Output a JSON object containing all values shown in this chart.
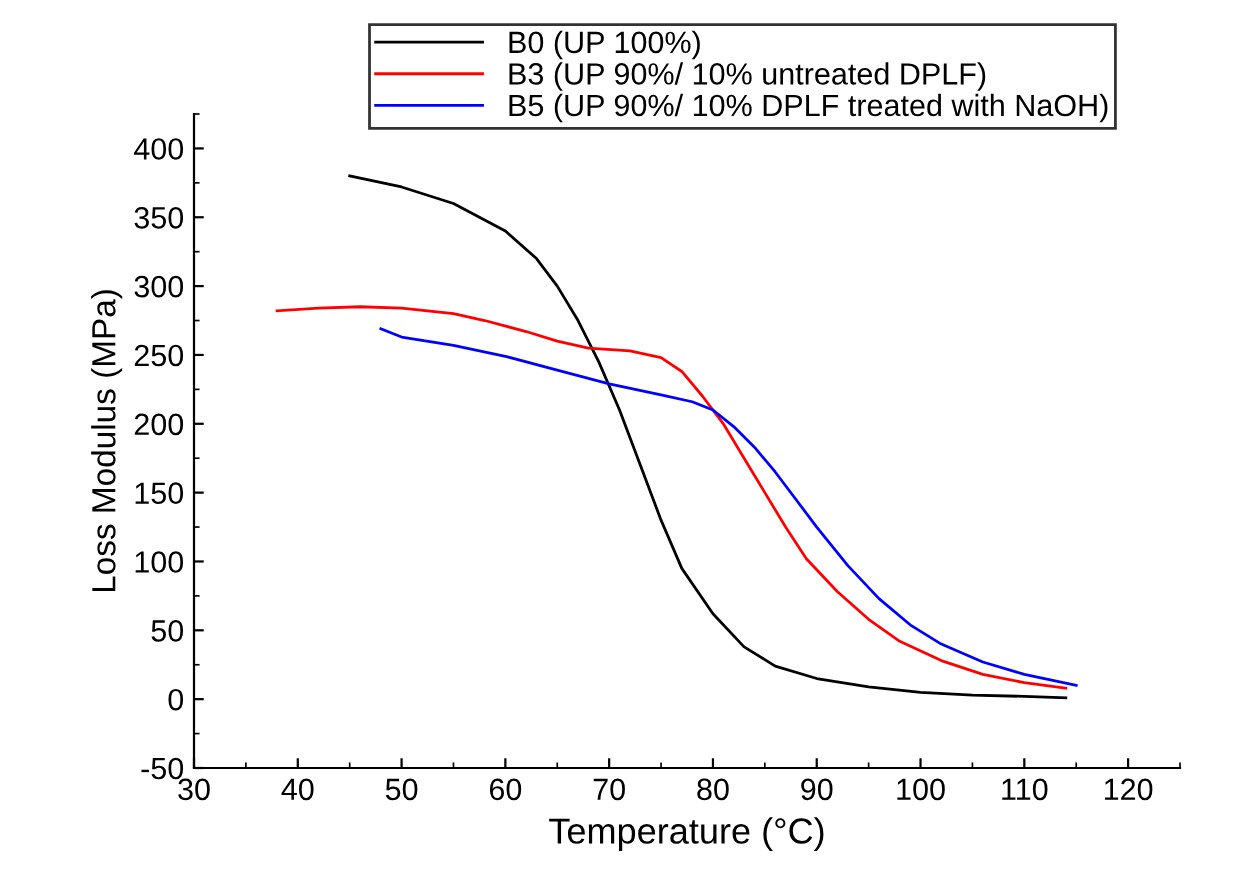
{
  "chart_data": {
    "type": "line",
    "xlabel": "Temperature (°C)",
    "ylabel": "Loss Modulus (MPa)",
    "xlim": [
      30,
      125
    ],
    "ylim": [
      -50,
      425
    ],
    "xticks": [
      30,
      40,
      50,
      60,
      70,
      80,
      90,
      100,
      110,
      120
    ],
    "yticks": [
      -50,
      0,
      50,
      100,
      150,
      200,
      250,
      300,
      350,
      400
    ],
    "legend": "top right",
    "grid": false,
    "marker": "none",
    "line_style": "solid",
    "series": [
      {
        "name": "B0 (UP 100%)",
        "color": "#000000",
        "x": [
          45,
          50,
          55,
          60,
          63,
          65,
          67,
          69,
          71,
          73,
          75,
          77,
          80,
          83,
          86,
          90,
          95,
          100,
          105,
          110,
          114
        ],
        "values": [
          380,
          372,
          360,
          340,
          320,
          300,
          275,
          245,
          210,
          170,
          130,
          95,
          62,
          38,
          24,
          15,
          9,
          5,
          3,
          2,
          1
        ]
      },
      {
        "name": "B3 (UP 90%/ 10% untreated DPLF)",
        "color": "#ff0000",
        "x": [
          38,
          42,
          46,
          50,
          55,
          58,
          62,
          65,
          68,
          72,
          75,
          77,
          79,
          81,
          83,
          85,
          87,
          89,
          92,
          95,
          98,
          102,
          106,
          110,
          114
        ],
        "values": [
          282,
          284,
          285,
          284,
          280,
          275,
          267,
          260,
          255,
          253,
          248,
          238,
          220,
          200,
          175,
          150,
          125,
          102,
          78,
          58,
          42,
          28,
          18,
          12,
          8
        ]
      },
      {
        "name": "B5 (UP 90%/ 10% DPLF treated with NaOH)",
        "color": "#0000ff",
        "x": [
          48,
          50,
          55,
          60,
          65,
          70,
          75,
          78,
          80,
          82,
          84,
          86,
          88,
          90,
          93,
          96,
          99,
          102,
          106,
          110,
          115
        ],
        "values": [
          269,
          263,
          257,
          249,
          239,
          229,
          221,
          216,
          210,
          198,
          183,
          165,
          145,
          125,
          97,
          73,
          54,
          40,
          27,
          18,
          10
        ]
      }
    ]
  }
}
